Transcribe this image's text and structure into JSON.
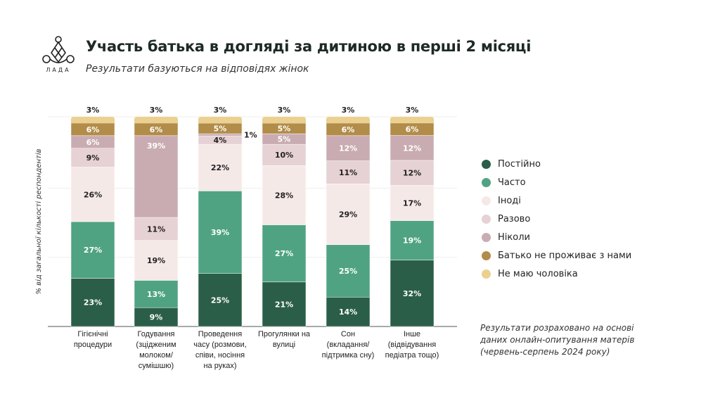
{
  "header": {
    "title": "Участь батька в догляді за дитиною в перші 2 місяці",
    "subtitle": "Результати базуються на відповідях жінок",
    "logo_text": "ЛАДА"
  },
  "note": "Результати розраховано на основі даних онлайн-опитування матерів (червень-серпень 2024 року)",
  "chart_data": {
    "type": "bar",
    "stacked": true,
    "ylabel": "% від загальної кількості респондентів",
    "ylim": [
      0,
      100
    ],
    "grid": true,
    "legend_position": "right",
    "categories": [
      "Гігієнічні процедури",
      "Годування (зцідженим молоком/ сумішшю)",
      "Проведення часу (розмови, співи, носіння на руках)",
      "Прогулянки на вулиці",
      "Сон (вкладання/ підтримка сну)",
      "Інше (відвідування педіатра тощо)"
    ],
    "series": [
      {
        "name": "Постійно",
        "color": "#2b5e48",
        "values": [
          23,
          9,
          25,
          21,
          14,
          32
        ]
      },
      {
        "name": "Часто",
        "color": "#4fa383",
        "values": [
          27,
          13,
          39,
          27,
          25,
          19
        ]
      },
      {
        "name": "Іноді",
        "color": "#f5e9e8",
        "values": [
          26,
          19,
          22,
          28,
          29,
          17
        ]
      },
      {
        "name": "Разово",
        "color": "#e6d1d4",
        "values": [
          9,
          11,
          4,
          10,
          11,
          12
        ]
      },
      {
        "name": "Ніколи",
        "color": "#c9acb2",
        "values": [
          6,
          39,
          1,
          5,
          12,
          12
        ]
      },
      {
        "name": "Батько не проживає з нами",
        "color": "#b28c49",
        "values": [
          6,
          6,
          5,
          5,
          6,
          6
        ]
      },
      {
        "name": "Не маю чоловіка",
        "color": "#ebd08f",
        "values": [
          3,
          3,
          3,
          3,
          3,
          3
        ]
      }
    ]
  }
}
